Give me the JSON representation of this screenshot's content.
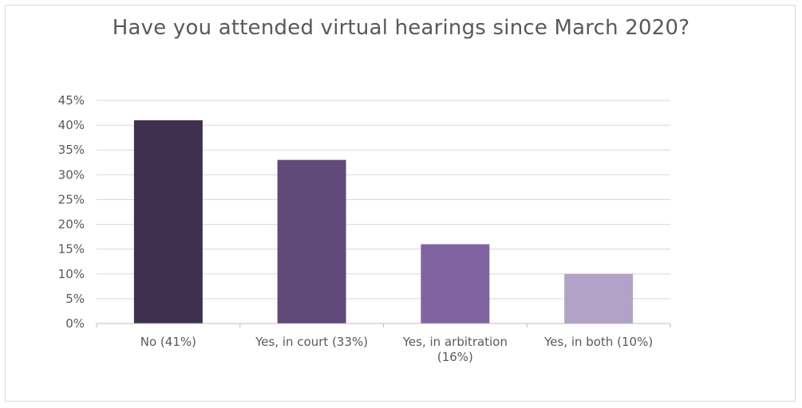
{
  "chart_data": {
    "type": "bar",
    "title": "Have you attended virtual hearings since March 2020?",
    "categories": [
      "No (41%)",
      "Yes, in court (33%)",
      "Yes, in arbitration (16%)",
      "Yes, in both (10%)"
    ],
    "category_lines": [
      [
        "No (41%)"
      ],
      [
        "Yes, in court (33%)"
      ],
      [
        "Yes, in arbitration",
        "(16%)"
      ],
      [
        "Yes, in both (10%)"
      ]
    ],
    "values": [
      41,
      33,
      16,
      10
    ],
    "colors": [
      "#3f3050",
      "#5f4a7a",
      "#8064a2",
      "#b3a2c7"
    ],
    "ylim": [
      0,
      45
    ],
    "ytick_step": 5,
    "ytick_labels": [
      "0%",
      "5%",
      "10%",
      "15%",
      "20%",
      "25%",
      "30%",
      "35%",
      "40%",
      "45%"
    ],
    "grid": true,
    "legend": "none",
    "xlabel": "",
    "ylabel": ""
  }
}
